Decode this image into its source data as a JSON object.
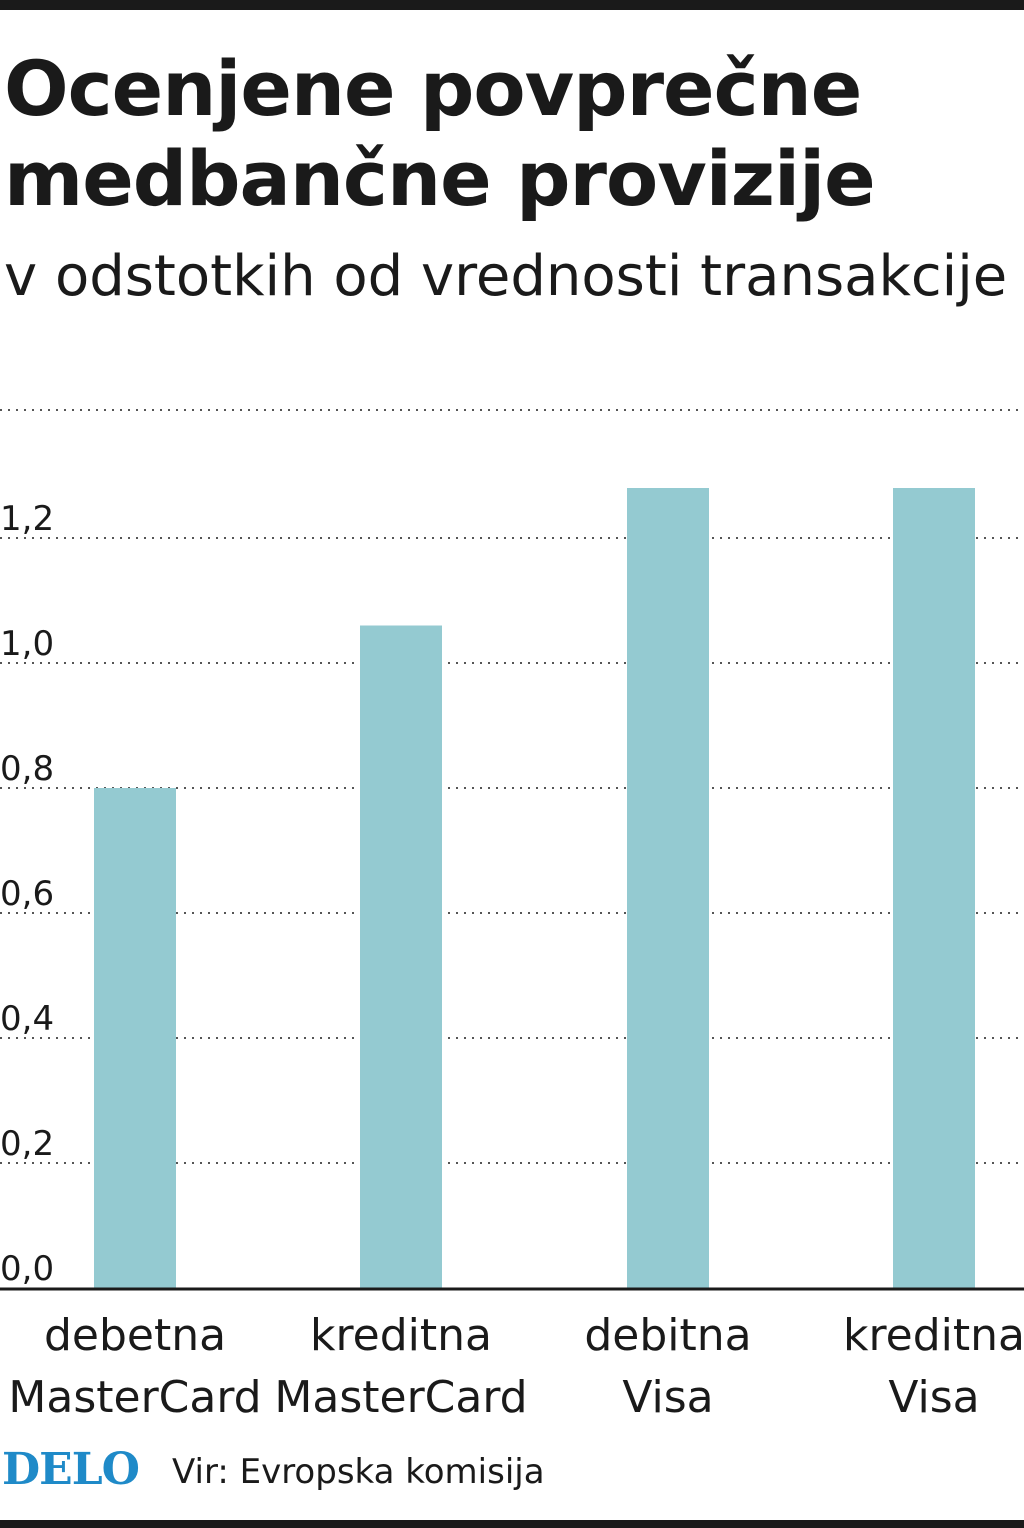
{
  "header": {
    "title": "Ocenjene povprečne medbančne provizije",
    "subtitle": "v odstotkih od vrednosti transakcije"
  },
  "footer": {
    "logo": "DELO",
    "source": "Vir: Evropska komisija"
  },
  "colors": {
    "bar": "#94cad1",
    "text": "#1a1a1a",
    "grid": "#555555",
    "logo": "#1f8ac8"
  },
  "chart_data": {
    "type": "bar",
    "title": "Ocenjene povprečne medbančne provizije",
    "subtitle": "v odstotkih od vrednosti transakcije",
    "categories": [
      [
        "debetna",
        "MasterCard"
      ],
      [
        "kreditna",
        "MasterCard"
      ],
      [
        "debitna",
        "Visa"
      ],
      [
        "kreditna",
        "Visa"
      ]
    ],
    "values": [
      0.8,
      1.06,
      1.28,
      1.28
    ],
    "ylim": [
      0,
      1.3
    ],
    "yticks": [
      "0,0",
      "0,2",
      "0,4",
      "0,6",
      "0,8",
      "1,0",
      "1,2"
    ],
    "ytick_values": [
      0,
      0.2,
      0.4,
      0.6,
      0.8,
      1.0,
      1.2
    ],
    "grid": "dotted horizontal",
    "legend": "none"
  }
}
